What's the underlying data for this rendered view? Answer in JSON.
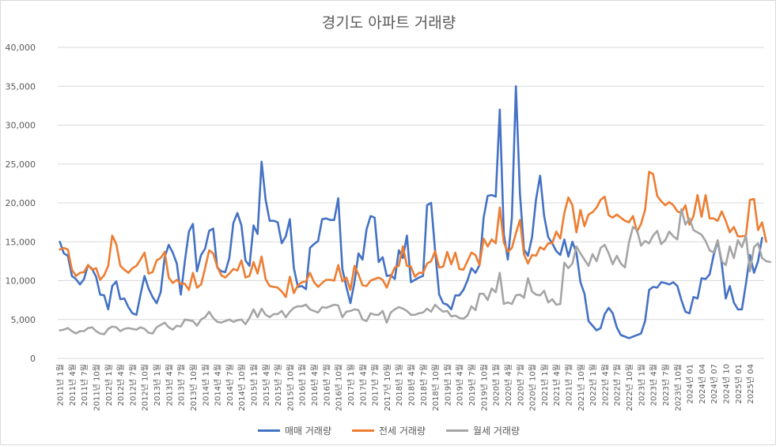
{
  "chart_data": {
    "type": "line",
    "title": "경기도 아파트 거래량",
    "ylim": [
      0,
      40000
    ],
    "yticks": [
      0,
      5000,
      10000,
      15000,
      20000,
      25000,
      30000,
      35000,
      40000
    ],
    "ytick_labels": [
      "0",
      "5,000",
      "10,000",
      "15,000",
      "20,000",
      "25,000",
      "30,000",
      "35,000",
      "40,000"
    ],
    "grid": true,
    "legend_position": "bottom",
    "x_labels": [
      "2011년 1월",
      "2011년 4월",
      "2011년 7월",
      "2011년 10월",
      "2012년 1월",
      "2012년 4월",
      "2012년 7월",
      "2012년 10월",
      "2013년 1월",
      "2013년 4월",
      "2013년 7월",
      "2013년 10월",
      "2014년 1월",
      "2014년 4월",
      "2014년 7월",
      "2014년 10월",
      "2015년 1월",
      "2015년 4월",
      "2015년 7월",
      "2015년 10월",
      "2016년 1월",
      "2016년 4월",
      "2016년 7월",
      "2016년 10월",
      "2017년 1월",
      "2017년 4월",
      "2017년 7월",
      "2017년 10월",
      "2018년 1월",
      "2018년 4월",
      "2018년 7월",
      "2018년 10월",
      "2019년 1월",
      "2019년 4월",
      "2019년 7월",
      "2019년 10월",
      "2020년 1월",
      "2020년 4월",
      "2020년 7월",
      "2020년 10월",
      "2021년 1월",
      "2021년 4월",
      "2021년 7월",
      "2021년 10월",
      "2022년 1월",
      "2022년 4월",
      "2022년 7월",
      "2022년 10월",
      "2023년 1월",
      "2023년 4월",
      "2023년 7월",
      "2023년 10월",
      "2024년 01",
      "2024년 04",
      "2024년 07",
      "2024년 10",
      "2025년 01",
      "2025년 04"
    ],
    "series": [
      {
        "name": "매매 거래량",
        "color": "#4472c4",
        "values": [
          15000,
          13500,
          13200,
          10600,
          10200,
          9500,
          10200,
          12000,
          11500,
          10500,
          8200,
          8100,
          6300,
          9300,
          9900,
          7600,
          7700,
          6600,
          5800,
          5600,
          8200,
          10600,
          9000,
          7900,
          7100,
          8500,
          13000,
          14600,
          13600,
          12200,
          8200,
          12500,
          16300,
          17300,
          11200,
          13300,
          14100,
          16400,
          16700,
          11700,
          11200,
          11100,
          12900,
          17400,
          18700,
          17100,
          12600,
          11900,
          17100,
          16000,
          25300,
          20400,
          17700,
          17700,
          17500,
          14800,
          15700,
          17900,
          11600,
          9200,
          9300,
          8900,
          14200,
          14700,
          15100,
          17900,
          18000,
          17800,
          17800,
          20600,
          11500,
          9200,
          7100,
          9800,
          13500,
          12700,
          16600,
          18300,
          18100,
          12400,
          13000,
          10600,
          10700,
          10200,
          13900,
          12900,
          15800,
          9800,
          10100,
          10400,
          10600,
          19700,
          20000,
          13800,
          8200,
          7100,
          6900,
          6300,
          8100,
          8100,
          8800,
          10000,
          11600,
          11000,
          12000,
          18100,
          20900,
          21000,
          20800,
          32000,
          16000,
          12700,
          18100,
          35000,
          21200,
          14000,
          13200,
          15600,
          20500,
          23500,
          18300,
          15600,
          14800,
          13800,
          13300,
          15300,
          13100,
          15000,
          13600,
          9800,
          8300,
          4800,
          4200,
          3600,
          3900,
          5700,
          6500,
          5800,
          4000,
          3000,
          2800,
          2600,
          2800,
          3000,
          3200,
          4800,
          8800,
          9200,
          9100,
          9800,
          9700,
          9500,
          9800,
          9300,
          7500,
          6000,
          5800,
          7900,
          7700,
          10300,
          10200,
          10800,
          13300,
          15100,
          12200,
          7700,
          9300,
          7200,
          6300,
          6300,
          9600,
          13300,
          11000,
          12500,
          15500
        ]
      },
      {
        "name": "전세 거래량",
        "color": "#ed7d31",
        "values": [
          14000,
          14200,
          14000,
          11400,
          10600,
          11000,
          11100,
          12000,
          11400,
          11600,
          10100,
          10700,
          11900,
          15800,
          14700,
          11900,
          11400,
          11000,
          11600,
          11900,
          12700,
          13600,
          10900,
          11100,
          12600,
          12900,
          13700,
          10400,
          9700,
          10100,
          9600,
          9600,
          8800,
          11000,
          9100,
          9500,
          11600,
          13900,
          13500,
          11800,
          10700,
          10400,
          10900,
          11500,
          11300,
          12600,
          10400,
          10600,
          12400,
          10900,
          13100,
          10200,
          9300,
          9200,
          9100,
          8600,
          7900,
          10500,
          8400,
          9400,
          9800,
          9900,
          11000,
          9800,
          9200,
          9700,
          10100,
          10100,
          10000,
          12000,
          9900,
          10400,
          8800,
          11900,
          10800,
          9400,
          9300,
          10000,
          10200,
          10400,
          10100,
          9100,
          10500,
          11700,
          11900,
          14400,
          11900,
          11800,
          10500,
          11000,
          11000,
          12200,
          12500,
          13800,
          11700,
          11800,
          13700,
          12100,
          13600,
          11500,
          11400,
          12500,
          13600,
          13300,
          12000,
          15400,
          14400,
          15300,
          14800,
          19400,
          14900,
          13700,
          14200,
          16100,
          17800,
          13400,
          12200,
          13300,
          13200,
          14300,
          14000,
          14800,
          14800,
          16300,
          15400,
          18700,
          20700,
          19700,
          16200,
          19100,
          17000,
          18500,
          18800,
          19400,
          20400,
          20800,
          18400,
          18100,
          18500,
          18100,
          17700,
          17500,
          18300,
          16300,
          17300,
          19100,
          24000,
          23700,
          20900,
          20200,
          19700,
          20100,
          19700,
          18900,
          18700,
          19700,
          17200,
          18300,
          21000,
          18200,
          21000,
          18000,
          18000,
          17700,
          18900,
          17700,
          16200,
          16900,
          15700,
          15700,
          15800,
          20400,
          20500,
          16500,
          17500,
          15000
        ]
      },
      {
        "name": "월세 거래량",
        "color": "#a5a5a5",
        "values": [
          3600,
          3700,
          3900,
          3500,
          3200,
          3500,
          3500,
          3900,
          4000,
          3500,
          3200,
          3100,
          3800,
          4100,
          4000,
          3500,
          3800,
          3900,
          3800,
          3700,
          4000,
          3800,
          3300,
          3200,
          4000,
          4300,
          4600,
          4000,
          3700,
          4200,
          4100,
          5000,
          4900,
          4800,
          4200,
          5000,
          5300,
          6000,
          5200,
          4700,
          4600,
          4800,
          5000,
          4700,
          4900,
          5000,
          4400,
          5200,
          6300,
          5300,
          6400,
          5600,
          5300,
          5700,
          5700,
          6100,
          5300,
          6000,
          6500,
          6700,
          6700,
          6900,
          6300,
          6100,
          5900,
          6600,
          6500,
          6700,
          6900,
          6800,
          5300,
          6000,
          6100,
          6300,
          6200,
          5000,
          4800,
          5800,
          5600,
          5600,
          6100,
          4600,
          5900,
          6300,
          6600,
          6400,
          6100,
          5600,
          5600,
          5800,
          5900,
          6400,
          6000,
          6900,
          6400,
          6000,
          6100,
          5400,
          5500,
          5200,
          5100,
          5500,
          6700,
          6200,
          8300,
          8300,
          7500,
          9000,
          8500,
          11000,
          7000,
          7200,
          7000,
          8100,
          8200,
          7800,
          10300,
          8600,
          8200,
          8100,
          8700,
          7200,
          7600,
          6900,
          7000,
          12300,
          11600,
          12200,
          14400,
          13500,
          12700,
          11900,
          13400,
          12500,
          14200,
          14600,
          13500,
          12100,
          13200,
          12200,
          11700,
          14900,
          16900,
          16500,
          14500,
          15100,
          14800,
          15800,
          16400,
          14700,
          15200,
          16300,
          15700,
          15300,
          19200,
          17200,
          18000,
          16500,
          16200,
          15900,
          15100,
          13900,
          13600,
          15200,
          12500,
          12000,
          14400,
          12900,
          15200,
          14300,
          15800,
          11200,
          14300,
          14800,
          12900,
          12500,
          12400
        ]
      }
    ]
  }
}
